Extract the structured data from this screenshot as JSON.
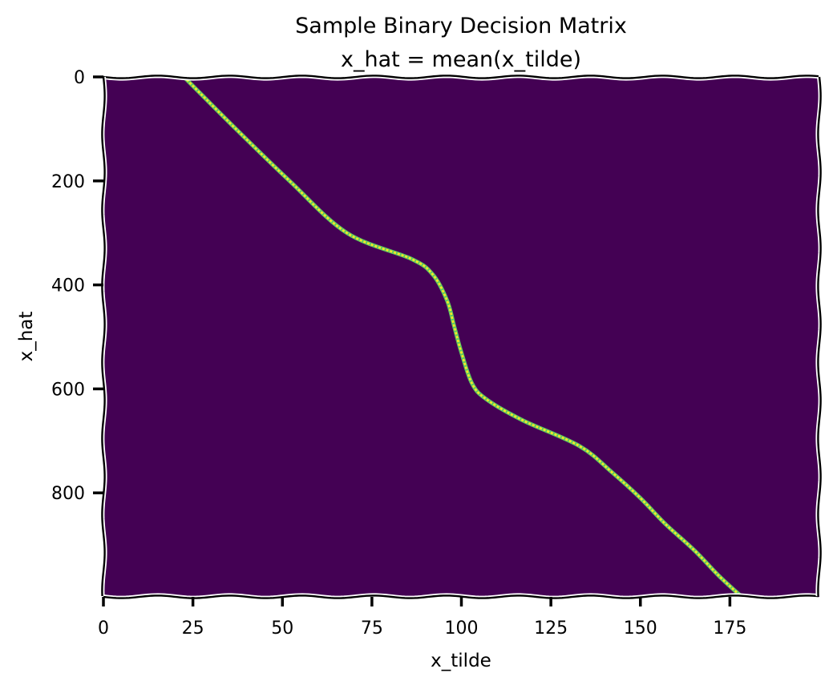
{
  "chart_data": {
    "type": "heatmap",
    "title": "Sample Binary Decision Matrix",
    "subtitle": "x_hat = mean(x_tilde)",
    "xlabel": "x_tilde",
    "ylabel": "x_hat",
    "xlim": [
      0,
      200
    ],
    "ylim": [
      1000,
      0
    ],
    "x_ticks": [
      0,
      25,
      50,
      75,
      100,
      125,
      150,
      175
    ],
    "y_ticks": [
      0,
      200,
      400,
      600,
      800
    ],
    "x_tick_labels": [
      "0",
      "25",
      "50",
      "75",
      "100",
      "125",
      "150",
      "175"
    ],
    "y_tick_labels": [
      "0",
      "200",
      "400",
      "600",
      "800"
    ],
    "colormap": "viridis",
    "values_range": [
      0,
      1
    ],
    "background_value": 0,
    "path_value": 1,
    "colors": {
      "background": "#440154",
      "path": "#fde725",
      "path_edge": "#5ec962"
    },
    "grid": false,
    "path_points": [
      {
        "x_tilde": 22.5,
        "x_hat": 0
      },
      {
        "x_tilde": 37,
        "x_hat": 100
      },
      {
        "x_tilde": 52,
        "x_hat": 200
      },
      {
        "x_tilde": 68,
        "x_hat": 300
      },
      {
        "x_tilde": 86,
        "x_hat": 350
      },
      {
        "x_tilde": 92,
        "x_hat": 380
      },
      {
        "x_tilde": 96,
        "x_hat": 430
      },
      {
        "x_tilde": 98,
        "x_hat": 480
      },
      {
        "x_tilde": 100,
        "x_hat": 530
      },
      {
        "x_tilde": 103,
        "x_hat": 590
      },
      {
        "x_tilde": 107,
        "x_hat": 620
      },
      {
        "x_tilde": 117,
        "x_hat": 660
      },
      {
        "x_tilde": 133,
        "x_hat": 710
      },
      {
        "x_tilde": 142,
        "x_hat": 760
      },
      {
        "x_tilde": 150,
        "x_hat": 810
      },
      {
        "x_tilde": 157,
        "x_hat": 860
      },
      {
        "x_tilde": 165,
        "x_hat": 910
      },
      {
        "x_tilde": 172,
        "x_hat": 960
      },
      {
        "x_tilde": 178,
        "x_hat": 998
      }
    ]
  }
}
